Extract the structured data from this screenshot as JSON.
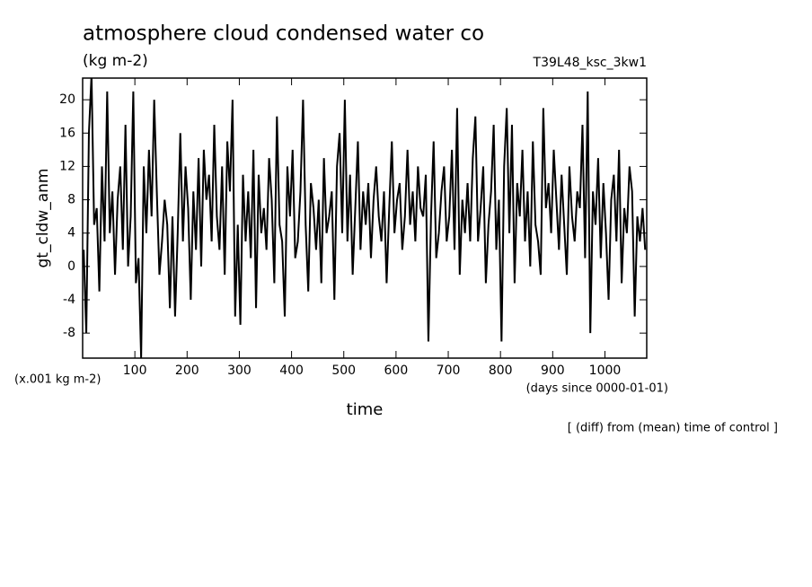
{
  "chart_data": {
    "type": "line",
    "title": "atmosphere cloud condensed water co",
    "subtitle": "(kg m-2)",
    "experiment": "T39L48_ksc_3kw1",
    "ylabel": "gt_cldw_anm",
    "yunits": "(x.001 kg m-2)",
    "xlabel": "time",
    "xunits": "(days since 0000-01-01)",
    "note": "[ (diff) from (mean) time of control ]",
    "xlim": [
      0,
      1080
    ],
    "ylim": [
      -11,
      22.6
    ],
    "xticks": [
      100,
      200,
      300,
      400,
      500,
      600,
      700,
      800,
      900,
      1000
    ],
    "yticks": [
      -8,
      -4,
      0,
      4,
      8,
      12,
      16,
      20
    ],
    "series": [
      {
        "name": "gt_cldw_anm",
        "color": "#000000",
        "x": [
          2,
          7,
          12,
          17,
          22,
          27,
          32,
          37,
          42,
          47,
          52,
          57,
          62,
          67,
          72,
          77,
          82,
          87,
          92,
          97,
          102,
          107,
          112,
          117,
          122,
          127,
          132,
          137,
          142,
          147,
          152,
          157,
          162,
          167,
          172,
          177,
          182,
          187,
          192,
          197,
          202,
          207,
          212,
          217,
          222,
          227,
          232,
          237,
          242,
          247,
          252,
          257,
          262,
          267,
          272,
          277,
          282,
          287,
          292,
          297,
          302,
          307,
          312,
          317,
          322,
          327,
          332,
          337,
          342,
          347,
          352,
          357,
          362,
          367,
          372,
          377,
          382,
          387,
          392,
          397,
          402,
          407,
          412,
          417,
          422,
          427,
          432,
          437,
          442,
          447,
          452,
          457,
          462,
          467,
          472,
          477,
          482,
          487,
          492,
          497,
          502,
          507,
          512,
          517,
          522,
          527,
          532,
          537,
          542,
          547,
          552,
          557,
          562,
          567,
          572,
          577,
          582,
          587,
          592,
          597,
          602,
          607,
          612,
          617,
          622,
          627,
          632,
          637,
          642,
          647,
          652,
          657,
          662,
          667,
          672,
          677,
          682,
          687,
          692,
          697,
          702,
          707,
          712,
          717,
          722,
          727,
          732,
          737,
          742,
          747,
          752,
          757,
          762,
          767,
          772,
          777,
          782,
          787,
          792,
          797,
          802,
          807,
          812,
          817,
          822,
          827,
          832,
          837,
          842,
          847,
          852,
          857,
          862,
          867,
          872,
          877,
          882,
          887,
          892,
          897,
          902,
          907,
          912,
          917,
          922,
          927,
          932,
          937,
          942,
          947,
          952,
          957,
          962,
          967,
          972,
          977,
          982,
          987,
          992,
          997,
          1002,
          1007,
          1012,
          1017,
          1022,
          1027,
          1032,
          1037,
          1042,
          1047,
          1052,
          1057,
          1062,
          1067,
          1072,
          1077
        ],
        "values": [
          2,
          -8,
          16,
          23,
          5,
          7,
          -3,
          12,
          3,
          21,
          4,
          9,
          -1,
          8,
          12,
          2,
          17,
          0,
          6,
          21,
          -2,
          1,
          -11,
          12,
          4,
          14,
          6,
          20,
          9,
          -1,
          3,
          8,
          5,
          -5,
          6,
          -6,
          4,
          16,
          3,
          12,
          7,
          -4,
          9,
          2,
          13,
          0,
          14,
          8,
          11,
          3,
          17,
          6,
          2,
          12,
          -1,
          15,
          9,
          20,
          -6,
          5,
          -7,
          11,
          3,
          9,
          1,
          14,
          -5,
          11,
          4,
          7,
          2,
          13,
          8,
          -2,
          18,
          5,
          3,
          -6,
          12,
          6,
          14,
          1,
          3,
          9,
          20,
          5,
          -3,
          10,
          7,
          2,
          8,
          -2,
          13,
          4,
          6,
          9,
          -4,
          12,
          16,
          4,
          20,
          3,
          11,
          -1,
          7,
          15,
          2,
          9,
          5,
          10,
          1,
          8,
          12,
          6,
          3,
          9,
          -2,
          7,
          15,
          4,
          8,
          10,
          2,
          6,
          14,
          5,
          9,
          3,
          12,
          7,
          6,
          11,
          -9,
          6,
          15,
          1,
          4,
          9,
          12,
          3,
          6,
          14,
          2,
          19,
          -1,
          8,
          4,
          10,
          3,
          13,
          18,
          3,
          7,
          12,
          -2,
          5,
          9,
          17,
          2,
          8,
          -9,
          12,
          19,
          4,
          17,
          -2,
          10,
          6,
          14,
          3,
          9,
          0,
          15,
          5,
          3,
          -1,
          19,
          7,
          10,
          4,
          14,
          8,
          2,
          11,
          5,
          -1,
          12,
          6,
          3,
          9,
          7,
          17,
          1,
          21,
          -8,
          9,
          5,
          13,
          1,
          10,
          4,
          -4,
          8,
          11,
          3,
          14,
          -2,
          7,
          4,
          12,
          9,
          -6,
          6,
          3,
          7,
          2
        ]
      }
    ]
  }
}
